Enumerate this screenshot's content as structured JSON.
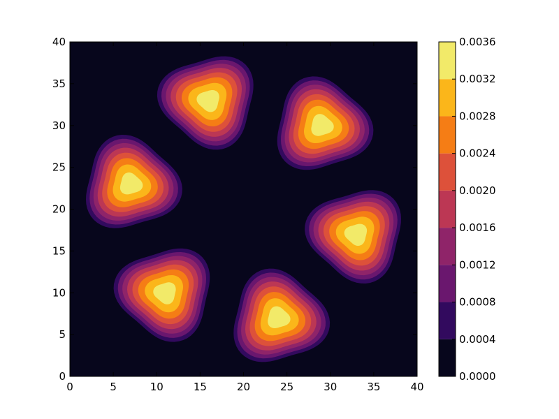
{
  "chart_data": {
    "type": "heatmap",
    "subtype": "filled-contour",
    "colormap": "inferno",
    "grid": false,
    "xlim": [
      0,
      40
    ],
    "ylim": [
      0,
      40
    ],
    "x_ticks": [
      "0",
      "5",
      "10",
      "15",
      "20",
      "25",
      "30",
      "35",
      "40"
    ],
    "y_ticks": [
      "0",
      "5",
      "10",
      "15",
      "20",
      "25",
      "30",
      "35",
      "40"
    ],
    "x_tick_values": [
      0,
      5,
      10,
      15,
      20,
      25,
      30,
      35,
      40
    ],
    "y_tick_values": [
      0,
      5,
      10,
      15,
      20,
      25,
      30,
      35,
      40
    ],
    "colorbar": {
      "min": 0.0,
      "max": 0.0036,
      "levels": [
        0.0,
        0.0004,
        0.0008,
        0.0012,
        0.0016,
        0.002,
        0.0024,
        0.0028,
        0.0032,
        0.0036
      ],
      "tick_labels": [
        "0.0000",
        "0.0004",
        "0.0008",
        "0.0012",
        "0.0016",
        "0.0020",
        "0.0024",
        "0.0028",
        "0.0032",
        "0.0036"
      ],
      "colors": [
        "#07061c",
        "#320a5e",
        "#6a176e",
        "#8f2469",
        "#bc3754",
        "#dd513a",
        "#f57d15",
        "#fbb61a",
        "#f2ea69"
      ]
    },
    "peaks": [
      {
        "x": 16,
        "y": 33,
        "peak": 0.0035
      },
      {
        "x": 29,
        "y": 30,
        "peak": 0.0035
      },
      {
        "x": 7,
        "y": 23,
        "peak": 0.0035
      },
      {
        "x": 33,
        "y": 17,
        "peak": 0.0035
      },
      {
        "x": 11,
        "y": 10,
        "peak": 0.0035
      },
      {
        "x": 24,
        "y": 7,
        "peak": 0.0035
      }
    ],
    "blob_extent": 5.8
  }
}
